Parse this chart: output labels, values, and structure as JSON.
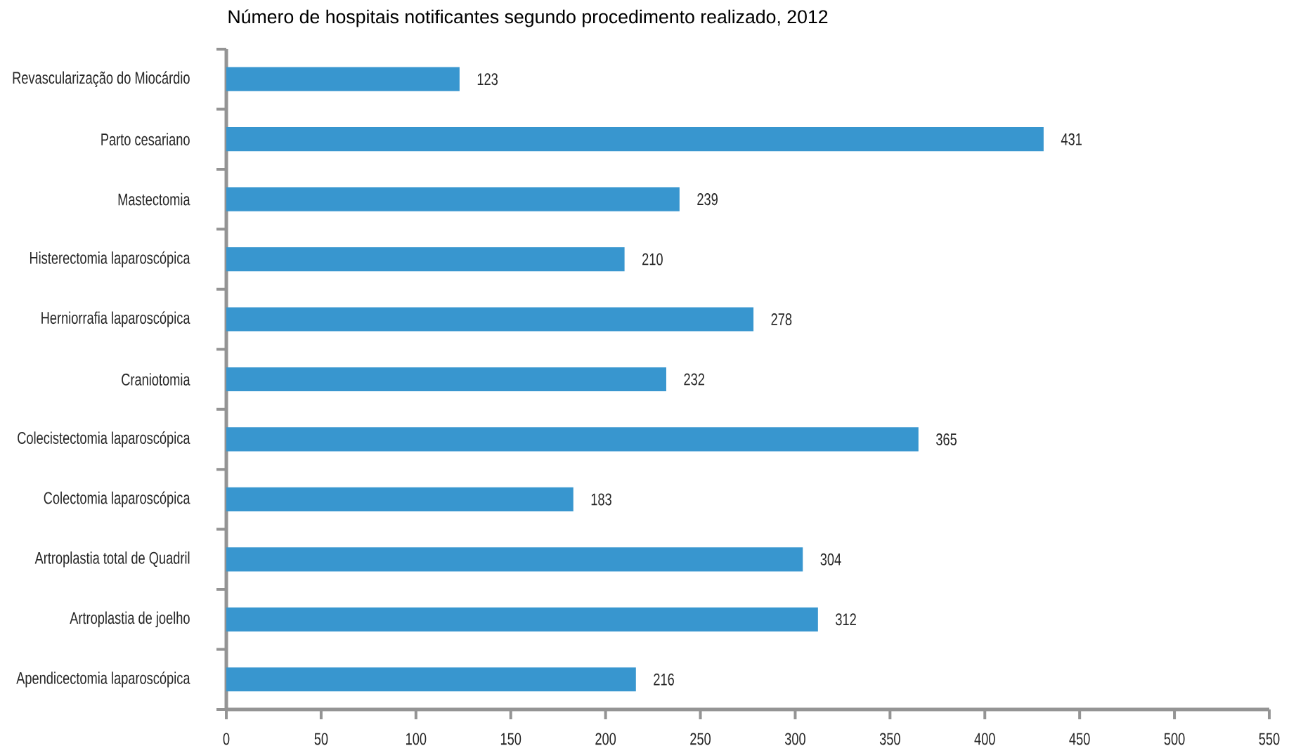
{
  "chart_data": {
    "type": "bar",
    "orientation": "horizontal",
    "title": "Número de hospitais notificantes segundo procedimento realizado, 2012",
    "categories": [
      "Revascularização do Miocárdio",
      "Parto cesariano",
      "Mastectomia",
      "Histerectomia laparoscópica",
      "Herniorrafia laparoscópica",
      "Craniotomia",
      "Colecistectomia laparoscópica",
      "Colectomia laparoscópica",
      "Artroplastia total de Quadril",
      "Artroplastia de joelho",
      "Apendicectomia laparoscópica"
    ],
    "values": [
      123,
      431,
      239,
      210,
      278,
      232,
      365,
      183,
      304,
      312,
      216
    ],
    "color": "#3896cf",
    "xlim": [
      0,
      550
    ],
    "xticks": [
      0,
      50,
      100,
      150,
      200,
      250,
      300,
      350,
      400,
      450,
      500,
      550
    ],
    "data_labels": true
  }
}
